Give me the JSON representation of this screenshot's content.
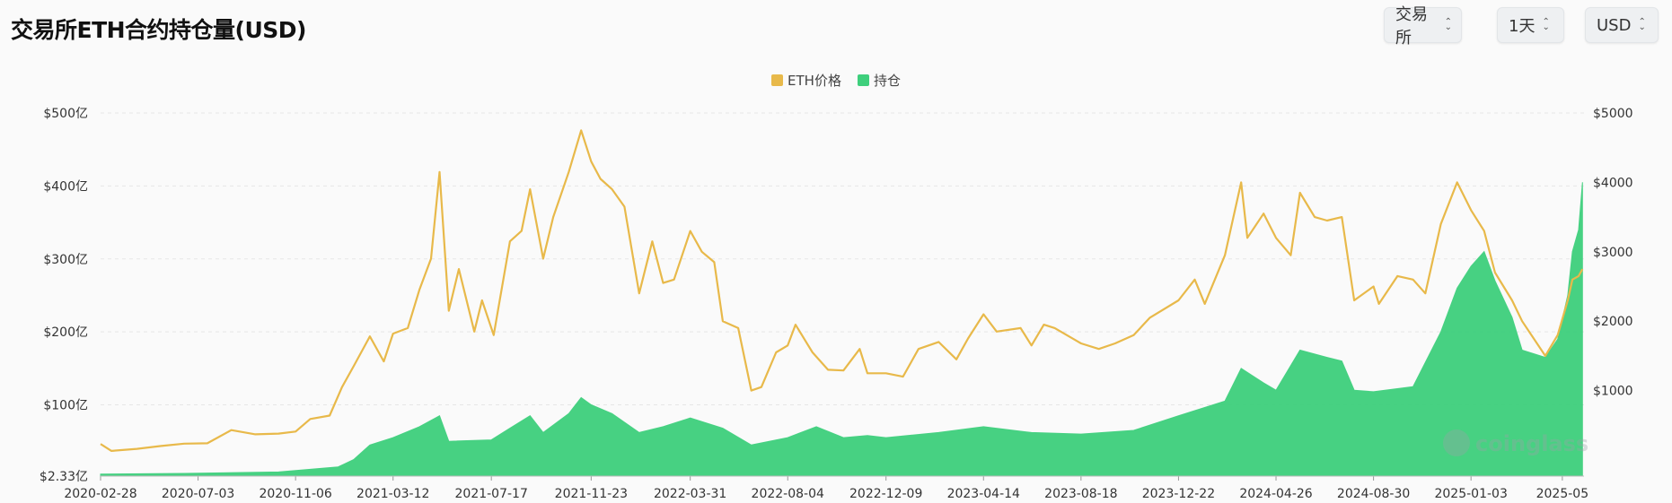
{
  "title": "交易所ETH合约持仓量(USD)",
  "controls": {
    "exchange": "交易所",
    "interval": "1天",
    "currency": "USD"
  },
  "watermark": "coinglass",
  "colors": {
    "price": "#e8b94a",
    "oi": "#3ecf7c",
    "grid": "#e6e6e6"
  },
  "chart_data": {
    "type": "area+line",
    "legend": [
      {
        "name": "ETH价格",
        "color": "#e8b94a"
      },
      {
        "name": "持仓",
        "color": "#3ecf7c"
      }
    ],
    "x_ticks": [
      "2020-02-28",
      "2020-07-03",
      "2020-11-06",
      "2021-03-12",
      "2021-07-17",
      "2021-11-23",
      "2022-03-31",
      "2022-08-04",
      "2022-12-09",
      "2023-04-14",
      "2023-08-18",
      "2023-12-22",
      "2024-04-26",
      "2024-08-30",
      "2025-01-03",
      "2025-05"
    ],
    "y_left_ticks": [
      "$2.33亿",
      "$100亿",
      "$200亿",
      "$300亿",
      "$400亿",
      "$500亿"
    ],
    "y_left_values": [
      2.33,
      100,
      200,
      300,
      400,
      500
    ],
    "y_right_ticks": [
      "$1000",
      "$2000",
      "$3000",
      "$4000",
      "$5000"
    ],
    "y_right_values": [
      1000,
      2000,
      3000,
      4000,
      5000
    ],
    "series": [
      {
        "name": "ETH价格",
        "axis": "right",
        "points": [
          [
            "2020-02-28",
            230
          ],
          [
            "2020-03-13",
            130
          ],
          [
            "2020-04-15",
            160
          ],
          [
            "2020-05-15",
            200
          ],
          [
            "2020-06-15",
            235
          ],
          [
            "2020-07-15",
            240
          ],
          [
            "2020-08-15",
            430
          ],
          [
            "2020-09-15",
            370
          ],
          [
            "2020-10-15",
            380
          ],
          [
            "2020-11-06",
            410
          ],
          [
            "2020-11-25",
            590
          ],
          [
            "2020-12-20",
            640
          ],
          [
            "2021-01-05",
            1050
          ],
          [
            "2021-01-20",
            1350
          ],
          [
            "2021-02-10",
            1780
          ],
          [
            "2021-02-28",
            1420
          ],
          [
            "2021-03-12",
            1820
          ],
          [
            "2021-03-31",
            1900
          ],
          [
            "2021-04-15",
            2450
          ],
          [
            "2021-04-30",
            2900
          ],
          [
            "2021-05-11",
            4150
          ],
          [
            "2021-05-23",
            2150
          ],
          [
            "2021-06-05",
            2750
          ],
          [
            "2021-06-25",
            1850
          ],
          [
            "2021-07-05",
            2300
          ],
          [
            "2021-07-20",
            1800
          ],
          [
            "2021-08-10",
            3150
          ],
          [
            "2021-08-25",
            3300
          ],
          [
            "2021-09-05",
            3900
          ],
          [
            "2021-09-22",
            2900
          ],
          [
            "2021-10-05",
            3500
          ],
          [
            "2021-10-25",
            4150
          ],
          [
            "2021-11-10",
            4750
          ],
          [
            "2021-11-23",
            4300
          ],
          [
            "2021-12-05",
            4050
          ],
          [
            "2021-12-20",
            3900
          ],
          [
            "2022-01-05",
            3650
          ],
          [
            "2022-01-24",
            2400
          ],
          [
            "2022-02-10",
            3150
          ],
          [
            "2022-02-24",
            2550
          ],
          [
            "2022-03-10",
            2600
          ],
          [
            "2022-03-31",
            3300
          ],
          [
            "2022-04-15",
            3000
          ],
          [
            "2022-05-01",
            2850
          ],
          [
            "2022-05-12",
            2000
          ],
          [
            "2022-06-01",
            1900
          ],
          [
            "2022-06-18",
            1000
          ],
          [
            "2022-07-01",
            1050
          ],
          [
            "2022-07-20",
            1550
          ],
          [
            "2022-08-04",
            1650
          ],
          [
            "2022-08-14",
            1950
          ],
          [
            "2022-09-05",
            1550
          ],
          [
            "2022-09-25",
            1300
          ],
          [
            "2022-10-15",
            1290
          ],
          [
            "2022-11-05",
            1600
          ],
          [
            "2022-11-15",
            1250
          ],
          [
            "2022-12-09",
            1250
          ],
          [
            "2022-12-31",
            1200
          ],
          [
            "2023-01-20",
            1600
          ],
          [
            "2023-02-15",
            1700
          ],
          [
            "2023-03-10",
            1450
          ],
          [
            "2023-03-25",
            1750
          ],
          [
            "2023-04-14",
            2100
          ],
          [
            "2023-05-01",
            1850
          ],
          [
            "2023-06-01",
            1900
          ],
          [
            "2023-06-15",
            1650
          ],
          [
            "2023-07-01",
            1950
          ],
          [
            "2023-07-15",
            1900
          ],
          [
            "2023-08-18",
            1680
          ],
          [
            "2023-09-10",
            1600
          ],
          [
            "2023-10-01",
            1680
          ],
          [
            "2023-10-25",
            1800
          ],
          [
            "2023-11-15",
            2050
          ],
          [
            "2023-12-22",
            2300
          ],
          [
            "2024-01-12",
            2600
          ],
          [
            "2024-01-25",
            2250
          ],
          [
            "2024-02-20",
            2950
          ],
          [
            "2024-03-12",
            4000
          ],
          [
            "2024-03-20",
            3200
          ],
          [
            "2024-04-10",
            3550
          ],
          [
            "2024-04-26",
            3200
          ],
          [
            "2024-05-15",
            2950
          ],
          [
            "2024-05-27",
            3850
          ],
          [
            "2024-06-15",
            3500
          ],
          [
            "2024-07-01",
            3450
          ],
          [
            "2024-07-20",
            3500
          ],
          [
            "2024-08-05",
            2300
          ],
          [
            "2024-08-30",
            2500
          ],
          [
            "2024-09-06",
            2250
          ],
          [
            "2024-09-30",
            2650
          ],
          [
            "2024-10-20",
            2600
          ],
          [
            "2024-11-05",
            2400
          ],
          [
            "2024-11-25",
            3400
          ],
          [
            "2024-12-16",
            4000
          ],
          [
            "2025-01-03",
            3600
          ],
          [
            "2025-01-20",
            3300
          ],
          [
            "2025-02-03",
            2700
          ],
          [
            "2025-02-25",
            2300
          ],
          [
            "2025-03-10",
            2000
          ],
          [
            "2025-04-09",
            1500
          ],
          [
            "2025-04-25",
            1800
          ],
          [
            "2025-05-08",
            2300
          ],
          [
            "2025-05-14",
            2600
          ],
          [
            "2025-05-22",
            2650
          ],
          [
            "2025-05-27",
            2750
          ]
        ]
      },
      {
        "name": "持仓",
        "axis": "left",
        "points": [
          [
            "2020-02-28",
            5
          ],
          [
            "2020-06-15",
            6
          ],
          [
            "2020-10-15",
            8
          ],
          [
            "2020-12-31",
            15
          ],
          [
            "2021-01-20",
            25
          ],
          [
            "2021-02-10",
            45
          ],
          [
            "2021-03-12",
            55
          ],
          [
            "2021-04-15",
            70
          ],
          [
            "2021-05-11",
            85
          ],
          [
            "2021-05-23",
            50
          ],
          [
            "2021-07-17",
            52
          ],
          [
            "2021-08-10",
            68
          ],
          [
            "2021-09-05",
            85
          ],
          [
            "2021-09-22",
            62
          ],
          [
            "2021-10-25",
            88
          ],
          [
            "2021-11-10",
            110
          ],
          [
            "2021-11-23",
            100
          ],
          [
            "2021-12-20",
            88
          ],
          [
            "2022-01-24",
            62
          ],
          [
            "2022-02-24",
            70
          ],
          [
            "2022-03-31",
            82
          ],
          [
            "2022-05-12",
            68
          ],
          [
            "2022-06-18",
            45
          ],
          [
            "2022-08-04",
            55
          ],
          [
            "2022-09-10",
            70
          ],
          [
            "2022-10-15",
            55
          ],
          [
            "2022-11-15",
            58
          ],
          [
            "2022-12-09",
            55
          ],
          [
            "2023-02-15",
            62
          ],
          [
            "2023-04-14",
            70
          ],
          [
            "2023-06-15",
            62
          ],
          [
            "2023-08-18",
            60
          ],
          [
            "2023-10-25",
            65
          ],
          [
            "2023-12-22",
            85
          ],
          [
            "2024-02-20",
            105
          ],
          [
            "2024-03-12",
            150
          ],
          [
            "2024-04-10",
            130
          ],
          [
            "2024-04-26",
            120
          ],
          [
            "2024-05-27",
            175
          ],
          [
            "2024-07-01",
            165
          ],
          [
            "2024-07-20",
            160
          ],
          [
            "2024-08-05",
            120
          ],
          [
            "2024-08-30",
            118
          ],
          [
            "2024-10-20",
            125
          ],
          [
            "2024-11-25",
            200
          ],
          [
            "2024-12-16",
            260
          ],
          [
            "2025-01-03",
            290
          ],
          [
            "2025-01-20",
            310
          ],
          [
            "2025-02-03",
            270
          ],
          [
            "2025-02-25",
            220
          ],
          [
            "2025-03-10",
            175
          ],
          [
            "2025-04-09",
            165
          ],
          [
            "2025-04-25",
            190
          ],
          [
            "2025-05-08",
            250
          ],
          [
            "2025-05-14",
            310
          ],
          [
            "2025-05-22",
            340
          ],
          [
            "2025-05-27",
            405
          ]
        ]
      }
    ]
  }
}
